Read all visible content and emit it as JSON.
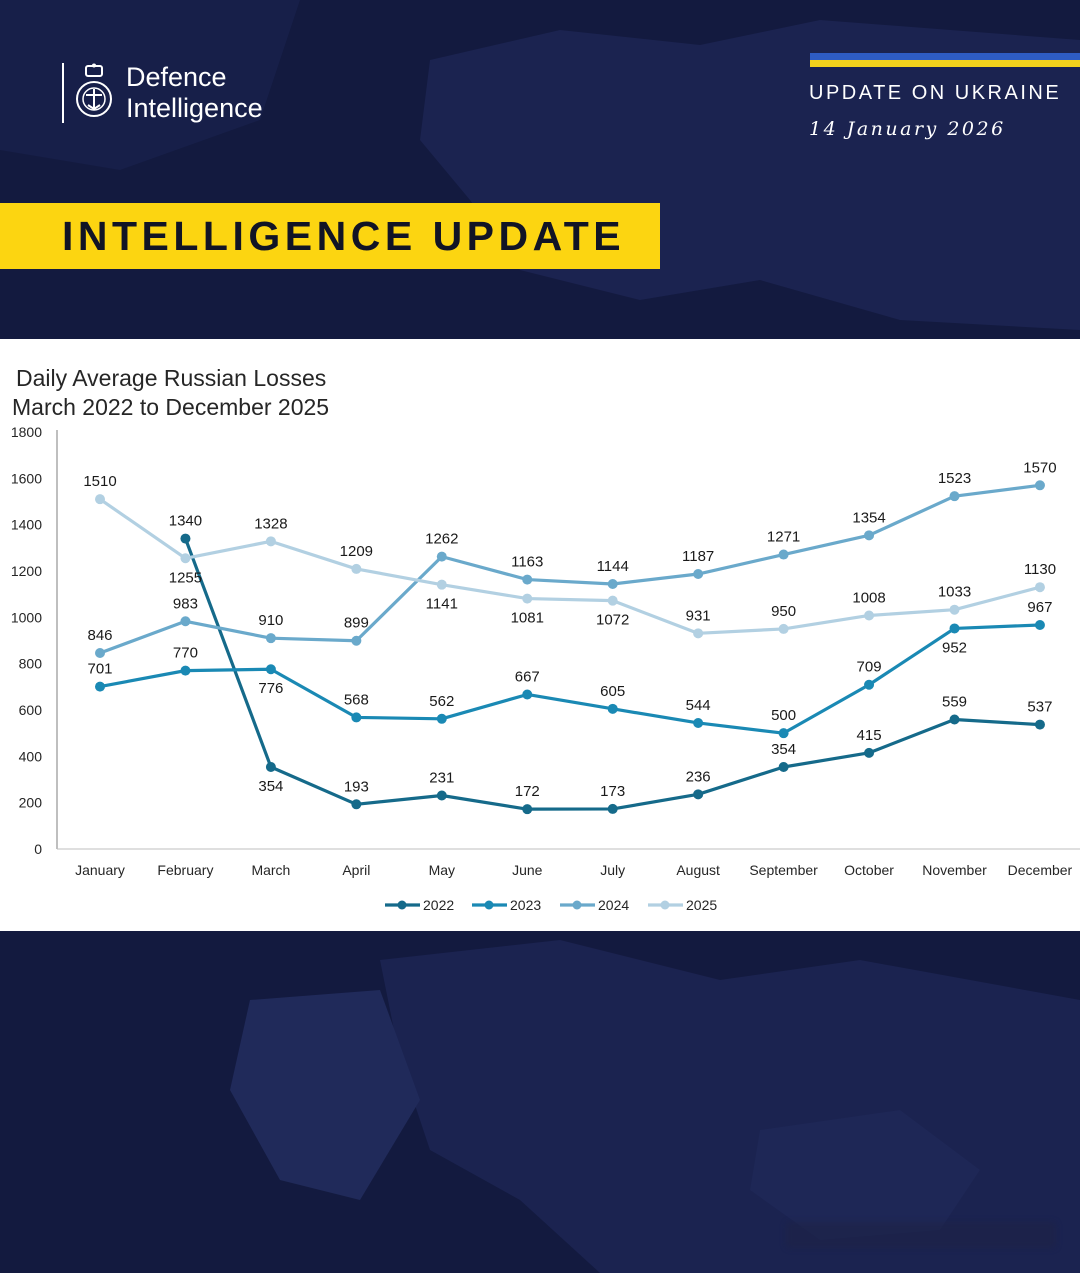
{
  "header": {
    "logo_line1": "Defence",
    "logo_line2": "Intelligence",
    "update_label": "UPDATE ON UKRAINE",
    "update_date": "14 January 2026",
    "banner": "INTELLIGENCE UPDATE"
  },
  "colors": {
    "background": "#131a3f",
    "banner_yellow": "#fcd511",
    "flag_blue": "#2e5cc4",
    "flag_yellow": "#f2d21c"
  },
  "chart_data": {
    "type": "line",
    "title_line1": "Daily Average Russian Losses",
    "title_line2": "March 2022 to December 2025",
    "xlabel": "",
    "ylabel": "",
    "ylim": [
      0,
      1800
    ],
    "yticks": [
      0,
      200,
      400,
      600,
      800,
      1000,
      1200,
      1400,
      1600,
      1800
    ],
    "grid": false,
    "legend_position": "bottom",
    "categories": [
      "January",
      "February",
      "March",
      "April",
      "May",
      "June",
      "July",
      "August",
      "September",
      "October",
      "November",
      "December"
    ],
    "series": [
      {
        "name": "2022",
        "color": "#156a8a",
        "values": [
          null,
          1340,
          354,
          193,
          231,
          172,
          173,
          236,
          354,
          415,
          559,
          537
        ]
      },
      {
        "name": "2023",
        "color": "#1a89b4",
        "values": [
          701,
          770,
          776,
          568,
          562,
          667,
          605,
          544,
          500,
          709,
          952,
          967
        ]
      },
      {
        "name": "2024",
        "color": "#6aa9cb",
        "values": [
          846,
          983,
          910,
          899,
          1262,
          1163,
          1144,
          1187,
          1271,
          1354,
          1523,
          1570
        ]
      },
      {
        "name": "2025",
        "color": "#b2d0e2",
        "values": [
          1510,
          1255,
          1328,
          1209,
          1141,
          1081,
          1072,
          931,
          950,
          1008,
          1033,
          1130
        ]
      }
    ],
    "label_positions": {
      "2022": [
        "",
        "above",
        "below",
        "above",
        "above",
        "above",
        "above",
        "above",
        "above",
        "above",
        "above",
        "above"
      ],
      "2023": [
        "above",
        "above",
        "below",
        "above",
        "above",
        "above",
        "above",
        "above",
        "above",
        "above",
        "below",
        "above"
      ],
      "2024": [
        "above",
        "above",
        "above",
        "above",
        "above",
        "above",
        "above",
        "above",
        "above",
        "above",
        "above",
        "above"
      ],
      "2025": [
        "above",
        "below",
        "above",
        "above",
        "below",
        "below",
        "below",
        "above",
        "above",
        "above",
        "above",
        "above"
      ]
    }
  }
}
